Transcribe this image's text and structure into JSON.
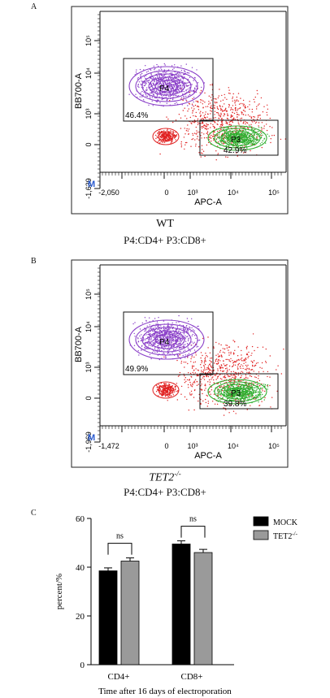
{
  "panels": {
    "a": {
      "letter": "A",
      "caption_title": "WT",
      "caption_sub": "P4:CD4+    P3:CD8+",
      "plot": {
        "y_axis_label": "BB700-A",
        "x_axis_label": "APC-A",
        "y_ticks": [
          "10⁵",
          "10⁴",
          "10³",
          "0",
          "-1,639"
        ],
        "x_ticks": [
          "-2,050",
          "0",
          "10³",
          "10⁴",
          "10⁵"
        ],
        "marker": "M",
        "gate_p4": {
          "name": "P4",
          "percent": "46.4%"
        },
        "gate_p3": {
          "name": "P3",
          "percent": "42.9%"
        }
      }
    },
    "b": {
      "letter": "B",
      "caption_title": "TET2",
      "caption_title_sup": "-/-",
      "caption_sub": "P4:CD4+    P3:CD8+",
      "plot": {
        "y_axis_label": "BB700-A",
        "x_axis_label": "APC-A",
        "y_ticks": [
          "10⁵",
          "10⁴",
          "10³",
          "0",
          "-1,969"
        ],
        "x_ticks": [
          "-1,472",
          "0",
          "10³",
          "10⁴",
          "10⁵"
        ],
        "marker": "M",
        "gate_p4": {
          "name": "P4",
          "percent": "49.9%"
        },
        "gate_p3": {
          "name": "P3",
          "percent": "39.8%"
        }
      }
    },
    "c": {
      "letter": "C"
    }
  },
  "colors": {
    "purple": "#8a3fc8",
    "red": "#e02020",
    "green": "#2fae2f",
    "mock_bar": "#000000",
    "tet2_bar": "#9a9a9a"
  },
  "chart_data": {
    "type": "bar",
    "categories": [
      "CD4+",
      "CD8+"
    ],
    "series": [
      {
        "name": "MOCK",
        "values": [
          38.5,
          49.5
        ],
        "errors": [
          1.2,
          1.3
        ]
      },
      {
        "name": "TET2-/-",
        "values": [
          42.5,
          46.0
        ],
        "errors": [
          1.3,
          1.3
        ]
      }
    ],
    "legend": [
      "MOCK",
      "TET2"
    ],
    "legend_sup": "-/-",
    "ylabel": "percent/%",
    "xlabel": "Time after 16 days of electroporation",
    "ylim": [
      0,
      60
    ],
    "yticks": [
      0,
      20,
      40,
      60
    ],
    "significance": [
      "ns",
      "ns"
    ],
    "legend_position": "top-right"
  }
}
